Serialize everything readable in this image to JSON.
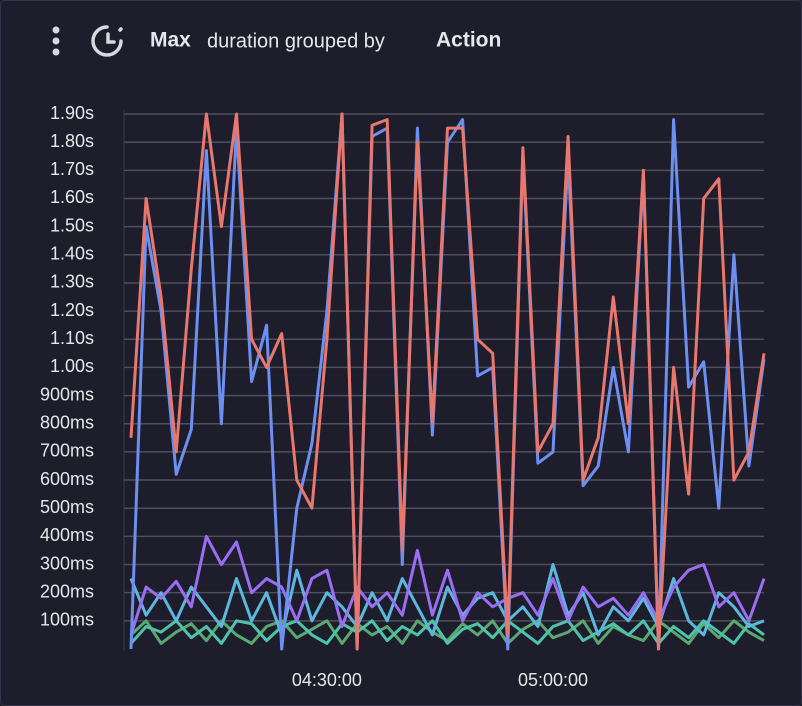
{
  "chart_data": {
    "type": "line",
    "title": {
      "aggregate": "Max",
      "text": "duration grouped by",
      "group": "Action"
    },
    "categories": [
      null,
      null,
      null,
      null,
      null,
      null,
      null,
      null,
      null,
      null,
      null,
      null,
      null,
      "04:30:00",
      null,
      null,
      null,
      null,
      null,
      null,
      null,
      null,
      null,
      null,
      null,
      null,
      null,
      null,
      "05:00:00",
      null,
      null,
      null,
      null,
      null,
      null,
      null,
      null,
      null,
      null,
      null,
      null,
      null,
      null
    ],
    "ylim": [
      0,
      1.9
    ],
    "yticks": [
      {
        "value": 0.1,
        "label": "100ms"
      },
      {
        "value": 0.2,
        "label": "200ms"
      },
      {
        "value": 0.3,
        "label": "300ms"
      },
      {
        "value": 0.4,
        "label": "400ms"
      },
      {
        "value": 0.5,
        "label": "500ms"
      },
      {
        "value": 0.6,
        "label": "600ms"
      },
      {
        "value": 0.7,
        "label": "700ms"
      },
      {
        "value": 0.8,
        "label": "800ms"
      },
      {
        "value": 0.9,
        "label": "900ms"
      },
      {
        "value": 1.0,
        "label": "1.00s"
      },
      {
        "value": 1.1,
        "label": "1.10s"
      },
      {
        "value": 1.2,
        "label": "1.20s"
      },
      {
        "value": 1.3,
        "label": "1.30s"
      },
      {
        "value": 1.4,
        "label": "1.40s"
      },
      {
        "value": 1.5,
        "label": "1.50s"
      },
      {
        "value": 1.6,
        "label": "1.60s"
      },
      {
        "value": 1.7,
        "label": "1.70s"
      },
      {
        "value": 1.8,
        "label": "1.80s"
      },
      {
        "value": 1.9,
        "label": "1.90s"
      }
    ],
    "grid": true,
    "series": [
      {
        "color": "#e8776d",
        "values": [
          0.75,
          1.6,
          1.25,
          0.7,
          1.35,
          1.9,
          1.5,
          1.9,
          1.1,
          1.0,
          1.12,
          0.6,
          0.5,
          1.1,
          1.9,
          0.0,
          1.86,
          1.88,
          0.35,
          1.8,
          0.8,
          1.85,
          1.85,
          1.1,
          1.05,
          0.05,
          1.78,
          0.7,
          0.8,
          1.82,
          0.6,
          0.75,
          1.25,
          0.8,
          1.7,
          0.0,
          1.0,
          0.55,
          1.6,
          1.67,
          0.6,
          0.7,
          1.05
        ]
      },
      {
        "color": "#6d8ff0",
        "values": [
          0.0,
          1.5,
          1.2,
          0.62,
          0.78,
          1.77,
          0.8,
          1.85,
          0.95,
          1.15,
          0.0,
          0.5,
          0.73,
          1.2,
          1.9,
          0.0,
          1.82,
          1.85,
          0.3,
          1.85,
          0.76,
          1.8,
          1.88,
          0.97,
          1.0,
          0.0,
          1.75,
          0.66,
          0.7,
          1.75,
          0.58,
          0.65,
          1.0,
          0.7,
          1.69,
          0.0,
          1.88,
          0.93,
          1.02,
          0.5,
          1.4,
          0.65,
          1.03
        ]
      },
      {
        "color": "#9a6ef2",
        "values": [
          0.05,
          0.22,
          0.18,
          0.24,
          0.15,
          0.4,
          0.3,
          0.38,
          0.2,
          0.25,
          0.22,
          0.1,
          0.25,
          0.28,
          0.08,
          0.22,
          0.15,
          0.2,
          0.12,
          0.35,
          0.12,
          0.28,
          0.1,
          0.2,
          0.15,
          0.18,
          0.2,
          0.12,
          0.25,
          0.1,
          0.22,
          0.15,
          0.18,
          0.12,
          0.2,
          0.1,
          0.22,
          0.28,
          0.3,
          0.15,
          0.2,
          0.1,
          0.25
        ]
      },
      {
        "color": "#5db7dc",
        "values": [
          0.25,
          0.12,
          0.2,
          0.1,
          0.22,
          0.15,
          0.08,
          0.25,
          0.1,
          0.2,
          0.05,
          0.28,
          0.1,
          0.2,
          0.15,
          0.08,
          0.2,
          0.1,
          0.25,
          0.15,
          0.05,
          0.22,
          0.12,
          0.18,
          0.2,
          0.1,
          0.15,
          0.08,
          0.3,
          0.12,
          0.2,
          0.05,
          0.15,
          0.1,
          0.18,
          0.08,
          0.25,
          0.1,
          0.05,
          0.2,
          0.15,
          0.08,
          0.1
        ]
      },
      {
        "color": "#4fc3a8",
        "values": [
          0.02,
          0.08,
          0.06,
          0.1,
          0.04,
          0.08,
          0.02,
          0.1,
          0.09,
          0.03,
          0.08,
          0.1,
          0.05,
          0.02,
          0.09,
          0.06,
          0.1,
          0.03,
          0.08,
          0.05,
          0.1,
          0.02,
          0.07,
          0.09,
          0.04,
          0.1,
          0.06,
          0.02,
          0.08,
          0.1,
          0.03,
          0.06,
          0.09,
          0.05,
          0.1,
          0.02,
          0.08,
          0.04,
          0.1,
          0.06,
          0.02,
          0.09,
          0.05
        ]
      },
      {
        "color": "#5aa870",
        "values": [
          0.05,
          0.1,
          0.02,
          0.06,
          0.09,
          0.03,
          0.1,
          0.05,
          0.02,
          0.08,
          0.1,
          0.04,
          0.07,
          0.1,
          0.02,
          0.09,
          0.05,
          0.08,
          0.02,
          0.1,
          0.06,
          0.03,
          0.09,
          0.05,
          0.1,
          0.02,
          0.07,
          0.1,
          0.04,
          0.06,
          0.1,
          0.02,
          0.08,
          0.05,
          0.03,
          0.1,
          0.06,
          0.02,
          0.09,
          0.04,
          0.1,
          0.06,
          0.03
        ]
      }
    ]
  }
}
